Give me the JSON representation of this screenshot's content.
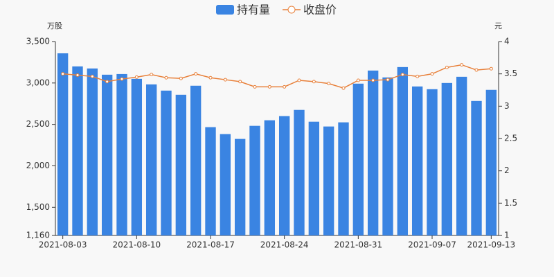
{
  "chart_data": {
    "type": "bar-line",
    "y_label": "万股",
    "y2_label": "元",
    "categories": [
      "2021-08-03",
      null,
      null,
      null,
      null,
      "2021-08-10",
      null,
      null,
      null,
      null,
      "2021-08-17",
      null,
      null,
      null,
      null,
      "2021-08-24",
      null,
      null,
      null,
      null,
      "2021-08-31",
      null,
      null,
      null,
      null,
      "2021-09-07",
      null,
      null,
      null,
      "2021-09-13"
    ],
    "series": [
      {
        "name": "持有量",
        "type": "bar",
        "color": "#3a84e2",
        "values": [
          3358,
          3200,
          3175,
          3100,
          3108,
          3050,
          2983,
          2908,
          2858,
          2967,
          2467,
          2383,
          2325,
          2483,
          2550,
          2600,
          2675,
          2533,
          2475,
          2525,
          2992,
          3150,
          3067,
          3192,
          2958,
          2925,
          3000,
          3075,
          2783,
          2917
        ]
      },
      {
        "name": "收盘价",
        "type": "line",
        "axis": "y2",
        "color": "#e8803a",
        "values": [
          3.5,
          3.48,
          3.46,
          3.38,
          3.42,
          3.45,
          3.49,
          3.44,
          3.43,
          3.5,
          3.44,
          3.41,
          3.38,
          3.3,
          3.3,
          3.3,
          3.4,
          3.38,
          3.35,
          3.28,
          3.4,
          3.4,
          3.41,
          3.49,
          3.46,
          3.5,
          3.6,
          3.64,
          3.56,
          3.58
        ]
      }
    ],
    "ylim": [
      1160,
      3500
    ],
    "yticks": [
      {
        "value": 1160,
        "label": "1,160"
      },
      {
        "value": 1500,
        "label": "1,500"
      },
      {
        "value": 2000,
        "label": "2,000"
      },
      {
        "value": 2500,
        "label": "2,500"
      },
      {
        "value": 3000,
        "label": "3,000"
      },
      {
        "value": 3500,
        "label": "3,500"
      }
    ],
    "y2lim": [
      1,
      4
    ],
    "y2ticks": [
      1,
      1.5,
      2,
      2.5,
      3,
      3.5,
      4
    ]
  }
}
